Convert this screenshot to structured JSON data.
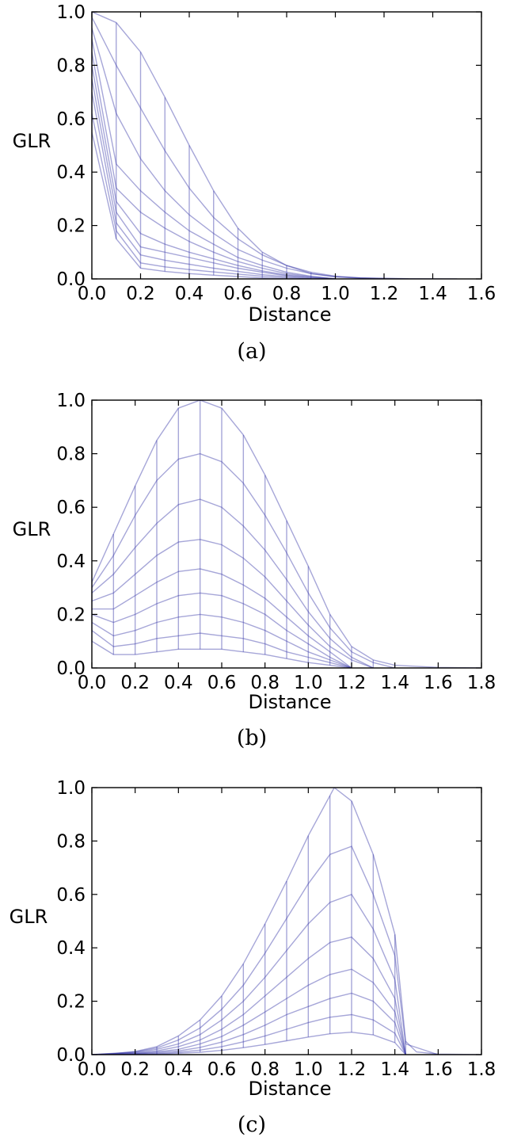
{
  "line_color": "#3a3aa8",
  "chart_data": [
    {
      "type": "line",
      "caption": "(a)",
      "xlabel": "Distance",
      "ylabel": "GLR",
      "xlim": [
        0.0,
        1.6
      ],
      "ylim": [
        0.0,
        1.0
      ],
      "x_ticks": [
        "0.0",
        "0.2",
        "0.4",
        "0.6",
        "0.8",
        "1.0",
        "1.2",
        "1.4",
        "1.6"
      ],
      "y_ticks": [
        "0.0",
        "0.2",
        "0.4",
        "0.6",
        "0.8",
        "1.0"
      ],
      "series": [
        {
          "x": [
            0.0,
            0.1,
            0.2,
            0.3,
            0.4,
            0.5,
            0.6,
            0.7,
            0.8,
            0.9,
            1.0,
            1.1,
            1.3,
            1.5
          ],
          "y": [
            1.0,
            0.96,
            0.85,
            0.68,
            0.5,
            0.33,
            0.19,
            0.1,
            0.05,
            0.02,
            0.008,
            0.003,
            0.001,
            0.0
          ]
        },
        {
          "x": [
            0.0,
            0.1,
            0.2,
            0.3,
            0.4,
            0.5,
            0.6,
            0.7,
            0.8,
            0.9,
            1.0,
            1.1,
            1.3
          ],
          "y": [
            0.98,
            0.8,
            0.64,
            0.48,
            0.34,
            0.23,
            0.15,
            0.09,
            0.05,
            0.025,
            0.01,
            0.004,
            0.0
          ]
        },
        {
          "x": [
            0.0,
            0.1,
            0.2,
            0.3,
            0.4,
            0.5,
            0.6,
            0.7,
            0.8,
            0.9,
            1.0,
            1.2
          ],
          "y": [
            0.94,
            0.62,
            0.45,
            0.33,
            0.24,
            0.17,
            0.11,
            0.07,
            0.04,
            0.02,
            0.008,
            0.0
          ]
        },
        {
          "x": [
            0.0,
            0.1,
            0.2,
            0.3,
            0.4,
            0.5,
            0.6,
            0.7,
            0.8,
            0.9,
            1.0
          ],
          "y": [
            0.9,
            0.43,
            0.33,
            0.25,
            0.18,
            0.13,
            0.08,
            0.05,
            0.025,
            0.01,
            0.0
          ]
        },
        {
          "x": [
            0.0,
            0.1,
            0.2,
            0.3,
            0.4,
            0.5,
            0.6,
            0.7,
            0.8,
            0.9,
            1.0
          ],
          "y": [
            0.85,
            0.34,
            0.25,
            0.19,
            0.14,
            0.1,
            0.065,
            0.04,
            0.02,
            0.008,
            0.0
          ]
        },
        {
          "x": [
            0.0,
            0.1,
            0.2,
            0.3,
            0.4,
            0.5,
            0.6,
            0.7,
            0.8,
            0.9,
            1.0
          ],
          "y": [
            0.8,
            0.29,
            0.17,
            0.13,
            0.1,
            0.075,
            0.05,
            0.03,
            0.015,
            0.005,
            0.0
          ]
        },
        {
          "x": [
            0.0,
            0.1,
            0.2,
            0.3,
            0.4,
            0.5,
            0.6,
            0.7,
            0.8,
            0.9,
            1.0
          ],
          "y": [
            0.75,
            0.25,
            0.12,
            0.1,
            0.08,
            0.06,
            0.04,
            0.025,
            0.012,
            0.004,
            0.0
          ]
        },
        {
          "x": [
            0.0,
            0.1,
            0.2,
            0.3,
            0.4,
            0.5,
            0.6,
            0.7,
            0.8,
            0.9
          ],
          "y": [
            0.7,
            0.21,
            0.09,
            0.07,
            0.055,
            0.04,
            0.028,
            0.016,
            0.008,
            0.0
          ]
        },
        {
          "x": [
            0.0,
            0.1,
            0.2,
            0.3,
            0.4,
            0.5,
            0.6,
            0.7,
            0.8,
            0.9
          ],
          "y": [
            0.62,
            0.18,
            0.06,
            0.045,
            0.035,
            0.026,
            0.018,
            0.01,
            0.004,
            0.0
          ]
        },
        {
          "x": [
            0.0,
            0.1,
            0.2,
            0.3,
            0.4,
            0.5,
            0.6,
            0.7,
            0.8
          ],
          "y": [
            0.55,
            0.15,
            0.04,
            0.028,
            0.02,
            0.014,
            0.009,
            0.004,
            0.0
          ]
        }
      ]
    },
    {
      "type": "line",
      "caption": "(b)",
      "xlabel": "Distance",
      "ylabel": "GLR",
      "xlim": [
        0.0,
        1.8
      ],
      "ylim": [
        0.0,
        1.0
      ],
      "x_ticks": [
        "0.0",
        "0.2",
        "0.4",
        "0.6",
        "0.8",
        "1.0",
        "1.2",
        "1.4",
        "1.6",
        "1.8"
      ],
      "y_ticks": [
        "0.0",
        "0.2",
        "0.4",
        "0.6",
        "0.8",
        "1.0"
      ],
      "series": [
        {
          "x": [
            0.0,
            0.1,
            0.2,
            0.3,
            0.4,
            0.5,
            0.6,
            0.7,
            0.8,
            0.9,
            1.0,
            1.1,
            1.2,
            1.3,
            1.4,
            1.6,
            1.8
          ],
          "y": [
            0.32,
            0.5,
            0.68,
            0.85,
            0.97,
            1.0,
            0.97,
            0.87,
            0.72,
            0.55,
            0.38,
            0.2,
            0.08,
            0.03,
            0.01,
            0.002,
            0.0
          ]
        },
        {
          "x": [
            0.0,
            0.1,
            0.2,
            0.3,
            0.4,
            0.5,
            0.6,
            0.7,
            0.8,
            0.9,
            1.0,
            1.1,
            1.2,
            1.3,
            1.4
          ],
          "y": [
            0.3,
            0.42,
            0.57,
            0.7,
            0.78,
            0.8,
            0.77,
            0.69,
            0.57,
            0.43,
            0.28,
            0.15,
            0.06,
            0.02,
            0.0
          ]
        },
        {
          "x": [
            0.0,
            0.1,
            0.2,
            0.3,
            0.4,
            0.5,
            0.6,
            0.7,
            0.8,
            0.9,
            1.0,
            1.1,
            1.2,
            1.3
          ],
          "y": [
            0.28,
            0.35,
            0.45,
            0.54,
            0.61,
            0.63,
            0.6,
            0.53,
            0.44,
            0.33,
            0.21,
            0.11,
            0.04,
            0.0
          ]
        },
        {
          "x": [
            0.0,
            0.1,
            0.2,
            0.3,
            0.4,
            0.5,
            0.6,
            0.7,
            0.8,
            0.9,
            1.0,
            1.1,
            1.2,
            1.3
          ],
          "y": [
            0.25,
            0.28,
            0.35,
            0.42,
            0.47,
            0.48,
            0.46,
            0.41,
            0.34,
            0.25,
            0.16,
            0.08,
            0.03,
            0.0
          ]
        },
        {
          "x": [
            0.0,
            0.1,
            0.2,
            0.3,
            0.4,
            0.5,
            0.6,
            0.7,
            0.8,
            0.9,
            1.0,
            1.1,
            1.2
          ],
          "y": [
            0.22,
            0.22,
            0.27,
            0.32,
            0.36,
            0.37,
            0.35,
            0.31,
            0.26,
            0.19,
            0.12,
            0.06,
            0.0
          ]
        },
        {
          "x": [
            0.0,
            0.1,
            0.2,
            0.3,
            0.4,
            0.5,
            0.6,
            0.7,
            0.8,
            0.9,
            1.0,
            1.1,
            1.2
          ],
          "y": [
            0.2,
            0.17,
            0.2,
            0.24,
            0.27,
            0.28,
            0.27,
            0.24,
            0.2,
            0.14,
            0.09,
            0.04,
            0.0
          ]
        },
        {
          "x": [
            0.0,
            0.1,
            0.2,
            0.3,
            0.4,
            0.5,
            0.6,
            0.7,
            0.8,
            0.9,
            1.0,
            1.1,
            1.2
          ],
          "y": [
            0.17,
            0.12,
            0.14,
            0.17,
            0.19,
            0.2,
            0.19,
            0.17,
            0.14,
            0.1,
            0.06,
            0.03,
            0.0
          ]
        },
        {
          "x": [
            0.0,
            0.1,
            0.2,
            0.3,
            0.4,
            0.5,
            0.6,
            0.7,
            0.8,
            0.9,
            1.0,
            1.1,
            1.2
          ],
          "y": [
            0.14,
            0.08,
            0.09,
            0.11,
            0.12,
            0.13,
            0.12,
            0.11,
            0.09,
            0.06,
            0.04,
            0.02,
            0.0
          ]
        },
        {
          "x": [
            0.0,
            0.1,
            0.2,
            0.3,
            0.4,
            0.5,
            0.6,
            0.7,
            0.8,
            0.9,
            1.0,
            1.1,
            1.2
          ],
          "y": [
            0.1,
            0.05,
            0.05,
            0.06,
            0.07,
            0.07,
            0.07,
            0.06,
            0.05,
            0.035,
            0.02,
            0.01,
            0.0
          ]
        }
      ]
    },
    {
      "type": "line",
      "caption": "(c)",
      "xlabel": "Distance",
      "ylabel": "GLR",
      "xlim": [
        0.0,
        1.8
      ],
      "ylim": [
        0.0,
        1.0
      ],
      "x_ticks": [
        "0.0",
        "0.2",
        "0.4",
        "0.6",
        "0.8",
        "1.0",
        "1.2",
        "1.4",
        "1.6",
        "1.8"
      ],
      "y_ticks": [
        "0.0",
        "0.2",
        "0.4",
        "0.6",
        "0.8",
        "1.0"
      ],
      "series": [
        {
          "x": [
            0.0,
            0.1,
            0.2,
            0.3,
            0.4,
            0.5,
            0.6,
            0.7,
            0.8,
            0.9,
            1.0,
            1.1,
            1.12,
            1.2,
            1.3,
            1.4,
            1.45,
            1.5,
            1.6,
            1.8
          ],
          "y": [
            0.0,
            0.003,
            0.012,
            0.03,
            0.07,
            0.13,
            0.22,
            0.34,
            0.49,
            0.65,
            0.82,
            0.97,
            1.0,
            0.95,
            0.75,
            0.45,
            0.05,
            0.01,
            0.002,
            0.0
          ]
        },
        {
          "x": [
            0.0,
            0.2,
            0.3,
            0.4,
            0.5,
            0.6,
            0.7,
            0.8,
            0.9,
            1.0,
            1.1,
            1.2,
            1.3,
            1.4,
            1.45,
            1.6
          ],
          "y": [
            0.0,
            0.01,
            0.025,
            0.055,
            0.1,
            0.17,
            0.26,
            0.38,
            0.51,
            0.64,
            0.75,
            0.78,
            0.6,
            0.37,
            0.04,
            0.0
          ]
        },
        {
          "x": [
            0.0,
            0.2,
            0.3,
            0.4,
            0.5,
            0.6,
            0.7,
            0.8,
            0.9,
            1.0,
            1.1,
            1.2,
            1.3,
            1.4,
            1.45
          ],
          "y": [
            0.0,
            0.008,
            0.02,
            0.04,
            0.075,
            0.13,
            0.2,
            0.29,
            0.39,
            0.49,
            0.57,
            0.6,
            0.47,
            0.28,
            0.0
          ]
        },
        {
          "x": [
            0.0,
            0.2,
            0.3,
            0.4,
            0.5,
            0.6,
            0.7,
            0.8,
            0.9,
            1.0,
            1.1,
            1.2,
            1.3,
            1.4,
            1.45
          ],
          "y": [
            0.0,
            0.006,
            0.014,
            0.03,
            0.055,
            0.095,
            0.15,
            0.22,
            0.29,
            0.36,
            0.42,
            0.44,
            0.36,
            0.21,
            0.0
          ]
        },
        {
          "x": [
            0.0,
            0.2,
            0.3,
            0.4,
            0.5,
            0.6,
            0.7,
            0.8,
            0.9,
            1.0,
            1.1,
            1.2,
            1.3,
            1.4,
            1.45
          ],
          "y": [
            0.0,
            0.004,
            0.01,
            0.02,
            0.04,
            0.068,
            0.11,
            0.16,
            0.21,
            0.26,
            0.3,
            0.32,
            0.27,
            0.16,
            0.0
          ]
        },
        {
          "x": [
            0.0,
            0.2,
            0.3,
            0.4,
            0.5,
            0.6,
            0.7,
            0.8,
            0.9,
            1.0,
            1.1,
            1.2,
            1.3,
            1.4,
            1.45
          ],
          "y": [
            0.0,
            0.003,
            0.007,
            0.014,
            0.027,
            0.047,
            0.075,
            0.11,
            0.15,
            0.18,
            0.21,
            0.23,
            0.2,
            0.12,
            0.0
          ]
        },
        {
          "x": [
            0.0,
            0.2,
            0.3,
            0.4,
            0.5,
            0.6,
            0.7,
            0.8,
            0.9,
            1.0,
            1.1,
            1.2,
            1.3,
            1.4,
            1.45
          ],
          "y": [
            0.0,
            0.002,
            0.004,
            0.009,
            0.017,
            0.03,
            0.048,
            0.07,
            0.095,
            0.12,
            0.14,
            0.15,
            0.13,
            0.08,
            0.0
          ]
        },
        {
          "x": [
            0.0,
            0.2,
            0.3,
            0.4,
            0.5,
            0.6,
            0.7,
            0.8,
            0.9,
            1.0,
            1.1,
            1.2,
            1.3,
            1.4,
            1.45
          ],
          "y": [
            0.0,
            0.001,
            0.002,
            0.005,
            0.009,
            0.016,
            0.026,
            0.038,
            0.052,
            0.066,
            0.078,
            0.084,
            0.074,
            0.045,
            0.0
          ]
        }
      ]
    }
  ]
}
